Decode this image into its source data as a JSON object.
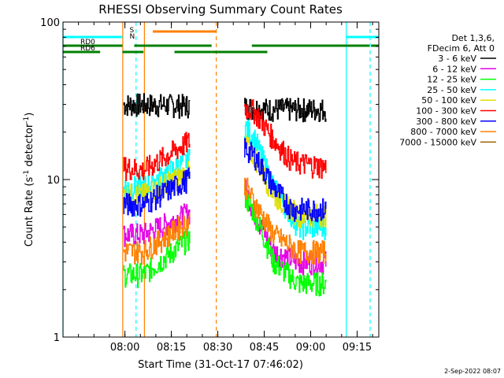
{
  "chart_data": {
    "type": "line",
    "title": "RHESSI Observing Summary Count Rates",
    "xlabel": "Start Time (31-Oct-17 07:46:02)",
    "ylabel_main": "Count Rate (s",
    "ylabel_sup": "-1",
    "ylabel_mid": " detector",
    "ylabel_end": ")",
    "y_scale": "log",
    "ylim": [
      1,
      100
    ],
    "xlim_minutes": [
      -6,
      96
    ],
    "x_ticks": [
      {
        "m": 14,
        "label": "08:00"
      },
      {
        "m": 29,
        "label": "08:15"
      },
      {
        "m": 44,
        "label": "08:30"
      },
      {
        "m": 59,
        "label": "08:45"
      },
      {
        "m": 74,
        "label": "09:00"
      },
      {
        "m": 89,
        "label": "09:15"
      }
    ],
    "y_ticks": [
      {
        "v": 1,
        "label": "1"
      },
      {
        "v": 10,
        "label": "10"
      },
      {
        "v": 100,
        "label": "100"
      }
    ],
    "legend_header": [
      "Det 1,3,6,",
      "FDecim 6, Att 0"
    ],
    "legend_position": "right",
    "data_gaps_minutes": [
      [
        -6,
        13.5
      ],
      [
        35,
        52.5
      ],
      [
        79,
        96
      ]
    ],
    "series": [
      {
        "name": "3 - 6 keV",
        "color": "#000000",
        "points": [
          [
            13.5,
            30
          ],
          [
            20,
            30
          ],
          [
            20,
            30
          ],
          [
            52.5,
            29
          ],
          [
            60,
            28
          ],
          [
            70,
            28
          ],
          [
            79,
            28
          ]
        ]
      },
      {
        "name": "6 - 12 keV",
        "color": "#e400e4",
        "points": [
          [
            13.5,
            4.5
          ],
          [
            20,
            4.5
          ],
          [
            52.5,
            9
          ],
          [
            56,
            6
          ],
          [
            62,
            3.5
          ],
          [
            70,
            3
          ],
          [
            79,
            3
          ]
        ]
      },
      {
        "name": "12 - 25 keV",
        "color": "#00ff00",
        "points": [
          [
            13.5,
            2.5
          ],
          [
            20,
            2.5
          ],
          [
            52.5,
            8
          ],
          [
            56,
            6
          ],
          [
            62,
            3
          ],
          [
            70,
            2.2
          ],
          [
            79,
            2.2
          ]
        ]
      },
      {
        "name": "25 - 50 keV",
        "color": "#00ffff",
        "points": [
          [
            13.5,
            9
          ],
          [
            20,
            9
          ],
          [
            52.5,
            22
          ],
          [
            56,
            18
          ],
          [
            62,
            9
          ],
          [
            70,
            5
          ],
          [
            79,
            5
          ]
        ]
      },
      {
        "name": "50 - 100 keV",
        "color": "#e0e000",
        "points": [
          [
            13.5,
            8
          ],
          [
            20,
            8
          ],
          [
            52.5,
            17
          ],
          [
            56,
            14
          ],
          [
            62,
            8
          ],
          [
            70,
            6
          ],
          [
            79,
            6
          ]
        ]
      },
      {
        "name": "100 - 300 keV",
        "color": "#ff0000",
        "points": [
          [
            13.5,
            12
          ],
          [
            20,
            11.5
          ],
          [
            52.5,
            29
          ],
          [
            56,
            27
          ],
          [
            62,
            18
          ],
          [
            68,
            13
          ],
          [
            79,
            12
          ]
        ]
      },
      {
        "name": "300 - 800 keV",
        "color": "#0000ff",
        "points": [
          [
            13.5,
            7
          ],
          [
            20,
            7
          ],
          [
            52.5,
            16
          ],
          [
            56,
            14
          ],
          [
            62,
            9
          ],
          [
            68,
            6.5
          ],
          [
            79,
            6.5
          ]
        ]
      },
      {
        "name": "800 - 7000 keV",
        "color": "#ff8000",
        "points": [
          [
            13.5,
            3.5
          ],
          [
            20,
            3.5
          ],
          [
            52.5,
            9.5
          ],
          [
            56,
            7
          ],
          [
            62,
            4.5
          ],
          [
            70,
            3.5
          ],
          [
            79,
            3.5
          ]
        ]
      },
      {
        "name": "7000 - 15000 keV",
        "color": "#a06000",
        "points": []
      }
    ],
    "flag_bars": [
      {
        "label": "",
        "color": "#00ffff",
        "y": 47,
        "segments": [
          [
            -6,
            13.2
          ],
          [
            85.5,
            96
          ]
        ]
      },
      {
        "label": "RD0",
        "color": "#008000",
        "y": 58,
        "segments": [
          [
            -6,
            13.2
          ],
          [
            17,
            42
          ],
          [
            55,
            93
          ],
          [
            93.5,
            96
          ]
        ]
      },
      {
        "label": "RD6",
        "color": "#008000",
        "y": 66,
        "segments": [
          [
            -6,
            6
          ],
          [
            13.2,
            20
          ],
          [
            30,
            42
          ],
          [
            42,
            44
          ],
          [
            44,
            60
          ]
        ]
      },
      {
        "label": "",
        "color": "#ff8000",
        "y": 40,
        "segments": [
          [
            23,
            43.5
          ]
        ]
      }
    ],
    "flag_marks": [
      {
        "label": "S",
        "color": "#ff8000"
      },
      {
        "label": "N",
        "color": "#00ffff"
      }
    ],
    "vlines": [
      {
        "m": -6,
        "color": "#00ffff",
        "style": "solid"
      },
      {
        "m": 13.3,
        "color": "#ff8000",
        "style": "solid"
      },
      {
        "m": 17.6,
        "color": "#00ffff",
        "style": "dashed"
      },
      {
        "m": 20.3,
        "color": "#ff8000",
        "style": "solid"
      },
      {
        "m": 43.5,
        "color": "#ff8000",
        "style": "dashed"
      },
      {
        "m": 85.5,
        "color": "#00ffff",
        "style": "solid"
      },
      {
        "m": 93.2,
        "color": "#00ffff",
        "style": "dashed"
      }
    ]
  },
  "footer": {
    "stamp": "2-Sep-2022 08:07"
  }
}
